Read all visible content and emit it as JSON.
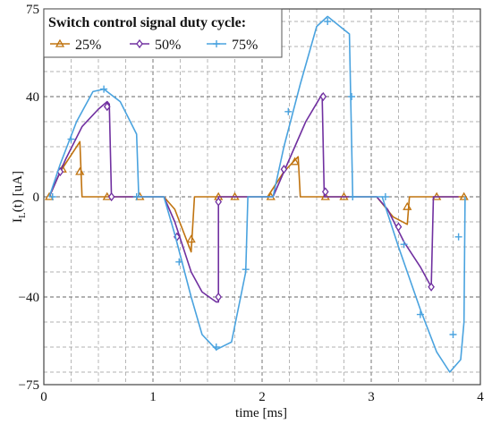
{
  "chart_data": {
    "type": "line",
    "xlabel": "time [ms]",
    "ylabel": "I",
    "ylabel_sub": "L",
    "ylabel_rest": "(t) [uA]",
    "xlim": [
      0,
      4
    ],
    "ylim": [
      -75,
      75
    ],
    "x_ticks": [
      0,
      1,
      2,
      3,
      4
    ],
    "x_tick_labels": [
      "0",
      "1",
      "2",
      "3",
      "4"
    ],
    "y_ticks": [
      -75,
      -40,
      0,
      40,
      75
    ],
    "y_tick_labels": [
      "−75",
      "−40",
      "0",
      "40",
      "75"
    ],
    "x_minor_step": 0.25,
    "y_minor_step": 10,
    "grid": "dashed major and minor",
    "legend": {
      "title": "Switch control signal duty cycle:",
      "placement": "top-left",
      "entries": [
        "25%",
        "50%",
        "75%"
      ]
    },
    "series": [
      {
        "name": "25%",
        "color": "#c0730f",
        "marker": "triangle",
        "points": [
          [
            0.05,
            0
          ],
          [
            0.15,
            10
          ],
          [
            0.33,
            22
          ],
          [
            0.35,
            0
          ],
          [
            0.55,
            0
          ],
          [
            0.9,
            0
          ],
          [
            1.0,
            0
          ],
          [
            1.1,
            0
          ],
          [
            1.2,
            -5
          ],
          [
            1.35,
            -22
          ],
          [
            1.38,
            0
          ],
          [
            1.6,
            0
          ],
          [
            1.75,
            0
          ],
          [
            2.05,
            0
          ],
          [
            2.2,
            10
          ],
          [
            2.33,
            16
          ],
          [
            2.35,
            0
          ],
          [
            2.55,
            0
          ],
          [
            2.75,
            0
          ],
          [
            3.05,
            0
          ],
          [
            3.2,
            -8
          ],
          [
            3.33,
            -11
          ],
          [
            3.35,
            0
          ],
          [
            3.55,
            0
          ],
          [
            3.85,
            0
          ]
        ],
        "markers": [
          [
            0.05,
            0
          ],
          [
            0.17,
            11
          ],
          [
            0.33,
            10
          ],
          [
            0.58,
            0
          ],
          [
            0.88,
            0
          ],
          [
            1.35,
            -17
          ],
          [
            1.6,
            0
          ],
          [
            1.75,
            0
          ],
          [
            2.08,
            0
          ],
          [
            2.3,
            14
          ],
          [
            2.58,
            0
          ],
          [
            2.75,
            0
          ],
          [
            3.33,
            -4
          ],
          [
            3.6,
            0
          ],
          [
            3.85,
            0
          ]
        ]
      },
      {
        "name": "50%",
        "color": "#7030a0",
        "marker": "diamond",
        "points": [
          [
            0.05,
            0
          ],
          [
            0.2,
            15
          ],
          [
            0.35,
            28
          ],
          [
            0.5,
            35
          ],
          [
            0.58,
            38
          ],
          [
            0.6,
            37
          ],
          [
            0.62,
            0
          ],
          [
            0.95,
            0
          ],
          [
            1.1,
            0
          ],
          [
            1.2,
            -10
          ],
          [
            1.35,
            -30
          ],
          [
            1.45,
            -38
          ],
          [
            1.58,
            -42
          ],
          [
            1.6,
            -42
          ],
          [
            1.6,
            0
          ],
          [
            2.0,
            0
          ],
          [
            2.1,
            0
          ],
          [
            2.25,
            15
          ],
          [
            2.4,
            30
          ],
          [
            2.55,
            41
          ],
          [
            2.57,
            0
          ],
          [
            2.8,
            0
          ],
          [
            3.05,
            0
          ],
          [
            3.15,
            -5
          ],
          [
            3.3,
            -18
          ],
          [
            3.45,
            -28
          ],
          [
            3.55,
            -36
          ],
          [
            3.57,
            0
          ],
          [
            3.8,
            0
          ]
        ],
        "markers": [
          [
            0.15,
            10
          ],
          [
            0.58,
            36
          ],
          [
            0.62,
            0
          ],
          [
            1.22,
            -16
          ],
          [
            1.6,
            -40
          ],
          [
            1.6,
            -2
          ],
          [
            2.2,
            11
          ],
          [
            2.56,
            40
          ],
          [
            2.58,
            2
          ],
          [
            3.25,
            -12
          ],
          [
            3.55,
            -36
          ]
        ]
      },
      {
        "name": "75%",
        "color": "#4aa3df",
        "marker": "plus",
        "points": [
          [
            0.05,
            0
          ],
          [
            0.15,
            13
          ],
          [
            0.3,
            30
          ],
          [
            0.45,
            42
          ],
          [
            0.55,
            43
          ],
          [
            0.7,
            38
          ],
          [
            0.85,
            25
          ],
          [
            0.87,
            0
          ],
          [
            1.05,
            0
          ],
          [
            1.1,
            0
          ],
          [
            1.2,
            -15
          ],
          [
            1.35,
            -40
          ],
          [
            1.45,
            -55
          ],
          [
            1.58,
            -61
          ],
          [
            1.72,
            -58
          ],
          [
            1.85,
            -30
          ],
          [
            1.87,
            0
          ],
          [
            2.05,
            0
          ],
          [
            2.1,
            0
          ],
          [
            2.2,
            20
          ],
          [
            2.35,
            45
          ],
          [
            2.5,
            68
          ],
          [
            2.6,
            72
          ],
          [
            2.8,
            65
          ],
          [
            2.83,
            0
          ],
          [
            3.05,
            0
          ],
          [
            3.1,
            0
          ],
          [
            3.25,
            -20
          ],
          [
            3.45,
            -45
          ],
          [
            3.6,
            -62
          ],
          [
            3.72,
            -70
          ],
          [
            3.82,
            -65
          ],
          [
            3.85,
            -50
          ],
          [
            3.86,
            0
          ]
        ],
        "markers": [
          [
            0.08,
            0
          ],
          [
            0.25,
            23
          ],
          [
            0.55,
            43
          ],
          [
            0.85,
            0
          ],
          [
            1.24,
            -26
          ],
          [
            1.58,
            -60
          ],
          [
            1.85,
            -29
          ],
          [
            2.24,
            34
          ],
          [
            2.6,
            70
          ],
          [
            2.82,
            40
          ],
          [
            2.83,
            0
          ],
          [
            3.13,
            0
          ],
          [
            3.3,
            -19
          ],
          [
            3.45,
            -47
          ],
          [
            3.75,
            -55
          ],
          [
            3.8,
            -16
          ]
        ]
      }
    ]
  }
}
